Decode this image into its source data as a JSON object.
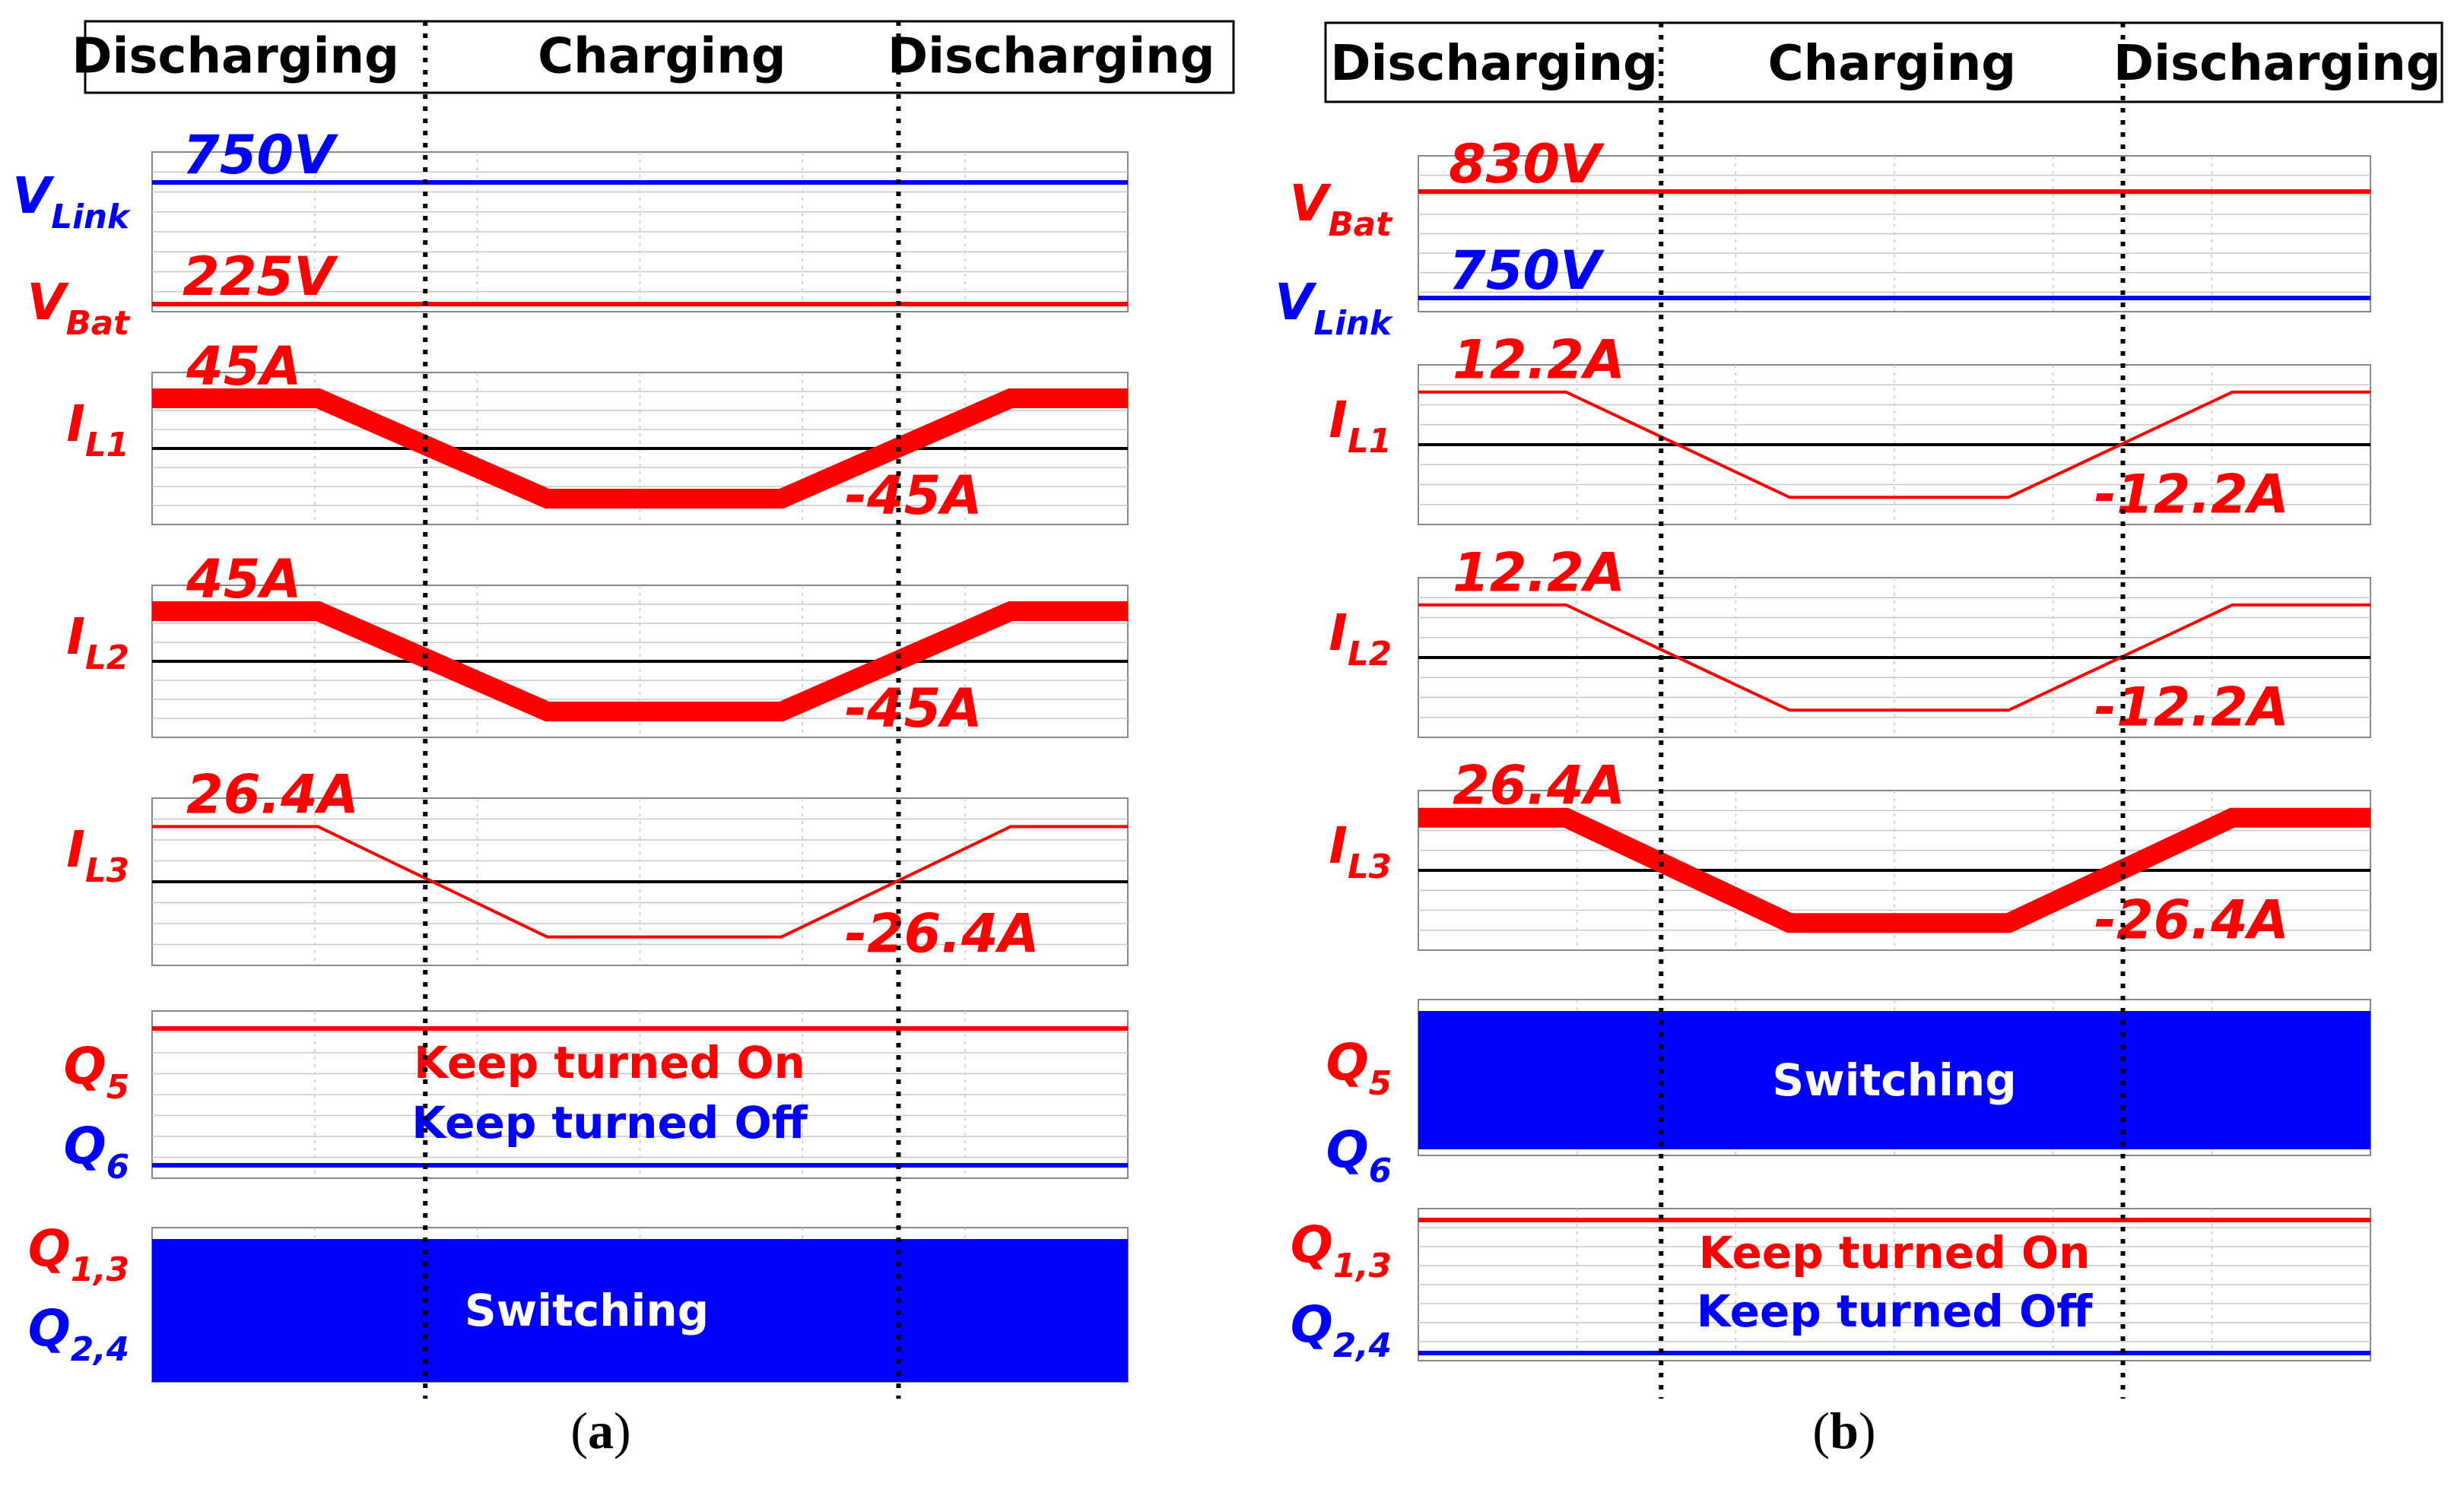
{
  "colors": {
    "red": "#ff0000",
    "blue": "#0000ff",
    "grid": "#c8c8c8",
    "frame": "#888888",
    "zero": "#000000",
    "ink": "#000000"
  },
  "chart_data": [
    {
      "type": "line",
      "panel_caption": {
        "open": "(",
        "letter": "a",
        "close": ")"
      },
      "modes": [
        "Discharging",
        "Charging",
        "Discharging"
      ],
      "time_axis": {
        "range": [
          0,
          1
        ],
        "mode_boundaries": [
          0.28,
          0.765
        ]
      },
      "subplots": [
        {
          "traces": [
            {
              "name": "V",
              "sub": "Link",
              "color": "blue",
              "value": 750,
              "label": "750V",
              "kind": "dc_level"
            },
            {
              "name": "V",
              "sub": "Bat",
              "color": "red",
              "value": 225,
              "label": "225V",
              "kind": "dc_level"
            }
          ]
        },
        {
          "traces": [
            {
              "name": "I",
              "sub": "L1",
              "color": "red",
              "thick": true,
              "peak": 45,
              "top_label": "45A",
              "bottom_label": "-45A",
              "t": [
                0,
                0.17,
                0.405,
                0.645,
                0.88,
                1.0
              ],
              "y": [
                45,
                45,
                -45,
                -45,
                45,
                45
              ]
            }
          ]
        },
        {
          "traces": [
            {
              "name": "I",
              "sub": "L2",
              "color": "red",
              "thick": true,
              "peak": 45,
              "top_label": "45A",
              "bottom_label": "-45A",
              "t": [
                0,
                0.17,
                0.405,
                0.645,
                0.88,
                1.0
              ],
              "y": [
                45,
                45,
                -45,
                -45,
                45,
                45
              ]
            }
          ]
        },
        {
          "traces": [
            {
              "name": "I",
              "sub": "L3",
              "color": "red",
              "thick": false,
              "peak": 26.4,
              "top_label": "26.4A",
              "bottom_label": "-26.4A",
              "t": [
                0,
                0.17,
                0.405,
                0.645,
                0.88,
                1.0
              ],
              "y": [
                26.4,
                26.4,
                -26.4,
                -26.4,
                26.4,
                26.4
              ]
            }
          ]
        },
        {
          "traces": [
            {
              "name": "Q",
              "sub": "5",
              "color": "red",
              "state": "Keep turned On",
              "kind": "gate_high"
            },
            {
              "name": "Q",
              "sub": "6",
              "color": "blue",
              "state": "Keep turned Off",
              "kind": "gate_low"
            }
          ]
        },
        {
          "traces": [
            {
              "name": "Q",
              "sub": "1,3",
              "color": "red",
              "kind": "switching"
            },
            {
              "name": "Q",
              "sub": "2,4",
              "color": "blue",
              "kind": "switching"
            }
          ],
          "state": "Switching"
        }
      ]
    },
    {
      "type": "line",
      "panel_caption": {
        "open": "(",
        "letter": "b",
        "close": ")"
      },
      "modes": [
        "Discharging",
        "Charging",
        "Discharging"
      ],
      "time_axis": {
        "range": [
          0,
          1
        ],
        "mode_boundaries": [
          0.255,
          0.74
        ]
      },
      "subplots": [
        {
          "traces": [
            {
              "name": "V",
              "sub": "Bat",
              "color": "red",
              "value": 830,
              "label": "830V",
              "kind": "dc_level"
            },
            {
              "name": "V",
              "sub": "Link",
              "color": "blue",
              "value": 750,
              "label": "750V",
              "kind": "dc_level"
            }
          ]
        },
        {
          "traces": [
            {
              "name": "I",
              "sub": "L1",
              "color": "red",
              "thick": false,
              "peak": 12.2,
              "top_label": "12.2A",
              "bottom_label": "-12.2A",
              "t": [
                0,
                0.155,
                0.39,
                0.62,
                0.855,
                1.0
              ],
              "y": [
                12.2,
                12.2,
                -12.2,
                -12.2,
                12.2,
                12.2
              ]
            }
          ]
        },
        {
          "traces": [
            {
              "name": "I",
              "sub": "L2",
              "color": "red",
              "thick": false,
              "peak": 12.2,
              "top_label": "12.2A",
              "bottom_label": "-12.2A",
              "t": [
                0,
                0.155,
                0.39,
                0.62,
                0.855,
                1.0
              ],
              "y": [
                12.2,
                12.2,
                -12.2,
                -12.2,
                12.2,
                12.2
              ]
            }
          ]
        },
        {
          "traces": [
            {
              "name": "I",
              "sub": "L3",
              "color": "red",
              "thick": true,
              "peak": 26.4,
              "top_label": "26.4A",
              "bottom_label": "-26.4A",
              "t": [
                0,
                0.155,
                0.39,
                0.62,
                0.855,
                1.0
              ],
              "y": [
                26.4,
                26.4,
                -26.4,
                -26.4,
                26.4,
                26.4
              ]
            }
          ]
        },
        {
          "traces": [
            {
              "name": "Q",
              "sub": "5",
              "color": "red",
              "kind": "switching"
            },
            {
              "name": "Q",
              "sub": "6",
              "color": "blue",
              "kind": "switching"
            }
          ],
          "state": "Switching"
        },
        {
          "traces": [
            {
              "name": "Q",
              "sub": "1,3",
              "color": "red",
              "state": "Keep turned On",
              "kind": "gate_high"
            },
            {
              "name": "Q",
              "sub": "2,4",
              "color": "blue",
              "state": "Keep turned Off",
              "kind": "gate_low"
            }
          ]
        }
      ]
    }
  ]
}
